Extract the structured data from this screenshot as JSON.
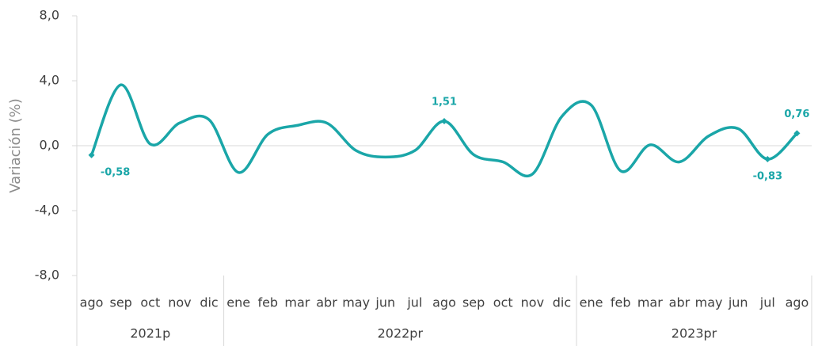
{
  "chart_data": {
    "type": "line",
    "ylabel": "Variación (%)",
    "groups": [
      {
        "label": "2021p",
        "categories": [
          "ago",
          "sep",
          "oct",
          "nov",
          "dic"
        ]
      },
      {
        "label": "2022pr",
        "categories": [
          "ene",
          "feb",
          "mar",
          "abr",
          "may",
          "jun",
          "jul",
          "ago",
          "sep",
          "oct",
          "nov",
          "dic"
        ]
      },
      {
        "label": "2023pr",
        "categories": [
          "ene",
          "feb",
          "mar",
          "abr",
          "may",
          "jun",
          "jul",
          "ago"
        ]
      }
    ],
    "series": [
      {
        "color": "#1aa6a8",
        "values": [
          -0.58,
          3.75,
          0.1,
          1.4,
          1.6,
          -1.65,
          0.7,
          1.25,
          1.4,
          -0.3,
          -0.7,
          -0.3,
          1.51,
          -0.55,
          -1.0,
          -1.75,
          1.8,
          2.5,
          -1.55,
          0.05,
          -1.0,
          0.6,
          1.05,
          -0.83,
          0.76
        ],
        "value_labels": [
          "-0,58",
          null,
          null,
          null,
          null,
          null,
          null,
          null,
          null,
          null,
          null,
          null,
          "1,51",
          null,
          null,
          null,
          null,
          null,
          null,
          null,
          null,
          null,
          null,
          "-0,83",
          "0,76"
        ]
      }
    ],
    "ylim": [
      -8,
      8
    ],
    "yticks": [
      {
        "value": 8,
        "label": "8,0"
      },
      {
        "value": 4,
        "label": "4,0"
      },
      {
        "value": 0,
        "label": "0,0"
      },
      {
        "value": -4,
        "label": "-4,0"
      },
      {
        "value": -8,
        "label": "-8,0"
      }
    ]
  }
}
